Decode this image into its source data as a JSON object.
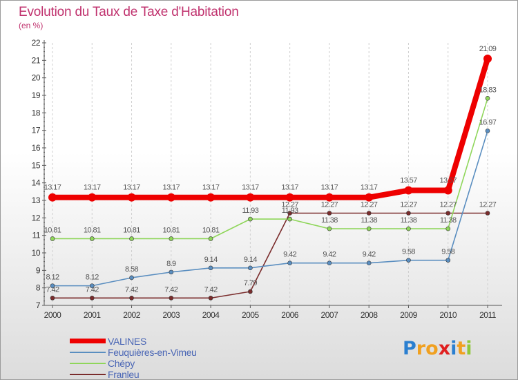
{
  "header": {
    "title": "Evolution du Taux de Taxe d'Habitation",
    "subtitle": "(en %)"
  },
  "chart_data": {
    "type": "line",
    "title": "Evolution du Taux de Taxe d'Habitation",
    "ylabel": "(en %)",
    "xlabel": "",
    "ylim": [
      7,
      22
    ],
    "yticks": [
      "7",
      "8",
      "9",
      "10",
      "11",
      "12",
      "13",
      "14",
      "15",
      "16",
      "17",
      "18",
      "19",
      "20",
      "21",
      "22"
    ],
    "categories": [
      "2000",
      "2001",
      "2002",
      "2003",
      "2004",
      "2005",
      "2006",
      "2007",
      "2008",
      "2009",
      "2010",
      "2011"
    ],
    "series": [
      {
        "name": "Franleu",
        "color": "#7a2c2c",
        "values": [
          7.42,
          7.42,
          7.42,
          7.42,
          7.42,
          7.79,
          12.27,
          12.27,
          12.27,
          12.27,
          12.27,
          12.27
        ],
        "labels": [
          "7.42",
          "7.42",
          "7.42",
          "7.42",
          "7.42",
          "7.79",
          "12.27",
          "12.27",
          "12.27",
          "12.27",
          "12.27",
          "12.27"
        ]
      },
      {
        "name": "Feuquières-en-Vimeu",
        "color": "#5a8ec0",
        "values": [
          8.12,
          8.12,
          8.58,
          8.9,
          9.14,
          9.14,
          9.42,
          9.42,
          9.42,
          9.58,
          9.58,
          16.97
        ],
        "labels": [
          "8.12",
          "8.12",
          "8.58",
          "8.9",
          "9.14",
          "9.14",
          "9.42",
          "9.42",
          "9.42",
          "9.58",
          "9.58",
          "16.97"
        ]
      },
      {
        "name": "Chépy",
        "color": "#8fd65a",
        "values": [
          10.81,
          10.81,
          10.81,
          10.81,
          10.81,
          11.93,
          11.93,
          11.38,
          11.38,
          11.38,
          11.38,
          18.83
        ],
        "labels": [
          "10.81",
          "10.81",
          "10.81",
          "10.81",
          "10.81",
          "11.93",
          "11.93",
          "11.38",
          "11.38",
          "11.38",
          "11.38",
          "18.83"
        ]
      },
      {
        "name": "VALINES",
        "color": "#ee0000",
        "values": [
          13.17,
          13.17,
          13.17,
          13.17,
          13.17,
          13.17,
          13.17,
          13.17,
          13.17,
          13.57,
          13.57,
          21.09
        ],
        "labels": [
          "13.17",
          "13.17",
          "13.17",
          "13.17",
          "13.17",
          "13.17",
          "13.17",
          "13.17",
          "13.17",
          "13.57",
          "13.57",
          "21.09"
        ]
      }
    ],
    "legend": {
      "position": "bottom-left",
      "entries": [
        "VALINES",
        "Feuquières-en-Vimeu",
        "Chépy",
        "Franleu"
      ]
    }
  },
  "logo": {
    "text": "Proxiti",
    "letters": [
      "P",
      "r",
      "o",
      "x",
      "i",
      "t",
      "i"
    ],
    "colors": [
      "#2a7fd0",
      "#f0a020",
      "#f0a020",
      "#e02020",
      "#2a7fd0",
      "#f0a020",
      "#8fc83a"
    ]
  }
}
